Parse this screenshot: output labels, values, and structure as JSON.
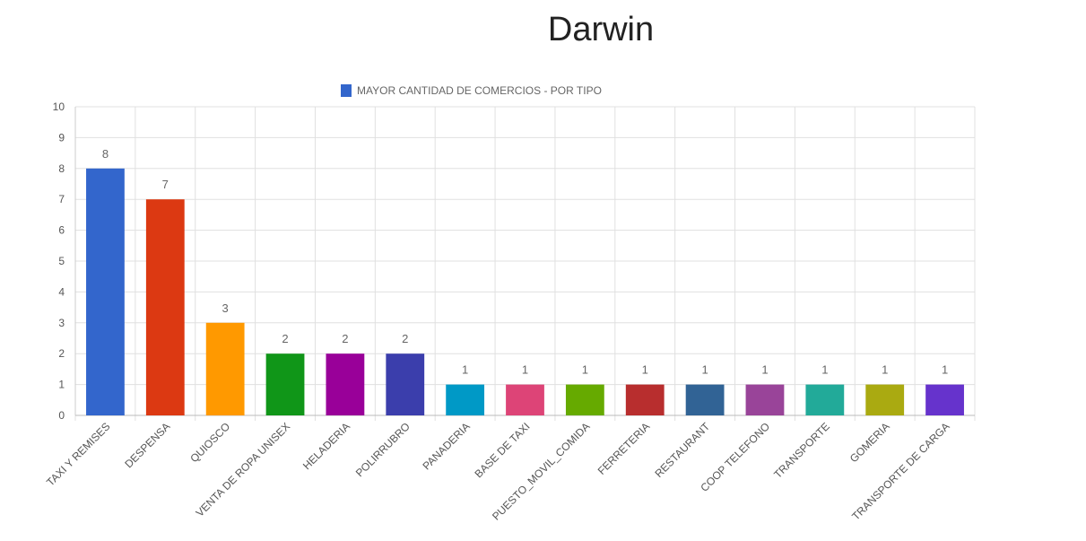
{
  "page": {
    "title": "Darwin"
  },
  "chart_data": {
    "type": "bar",
    "title": "",
    "xlabel": "",
    "ylabel": "",
    "ylim": [
      0,
      10
    ],
    "yticks": [
      0,
      1,
      2,
      3,
      4,
      5,
      6,
      7,
      8,
      9,
      10
    ],
    "grid": true,
    "legend_position": "top-center",
    "categories": [
      "TAXI Y REMISES",
      "DESPENSA",
      "QUIOSCO",
      "VENTA DE ROPA UNISEX",
      "HELADERIA",
      "POLIRRUBRO",
      "PANADERIA",
      "BASE DE TAXI",
      "PUESTO_MOVIL_COMIDA",
      "FERRETERIA",
      "RESTAURANT",
      "COOP TELEFONO",
      "TRANSPORTE",
      "GOMERIA",
      "TRANSPORTE DE CARGA"
    ],
    "series": [
      {
        "name": "MAYOR CANTIDAD DE COMERCIOS - POR TIPO",
        "legend_color": "#3366cc",
        "values": [
          8,
          7,
          3,
          2,
          2,
          2,
          1,
          1,
          1,
          1,
          1,
          1,
          1,
          1,
          1
        ]
      }
    ],
    "bar_colors": [
      "#3366cc",
      "#dc3912",
      "#ff9900",
      "#109618",
      "#990099",
      "#3b3eac",
      "#0099c6",
      "#dd4477",
      "#66aa00",
      "#b82e2e",
      "#316395",
      "#994499",
      "#22aa99",
      "#aaaa11",
      "#6633cc"
    ],
    "data_labels": [
      "8",
      "7",
      "3",
      "2",
      "2",
      "2",
      "1",
      "1",
      "1",
      "1",
      "1",
      "1",
      "1",
      "1",
      "1"
    ]
  }
}
